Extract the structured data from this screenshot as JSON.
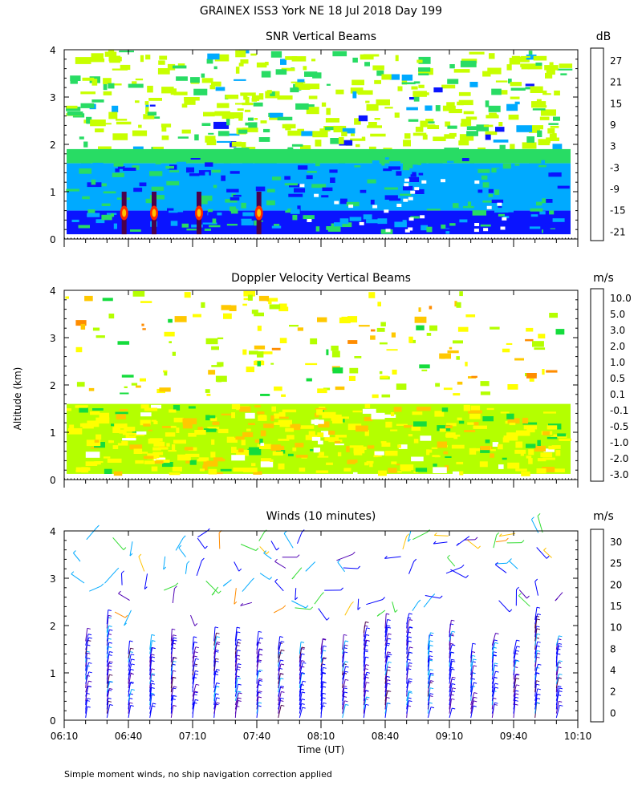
{
  "header": {
    "title": "GRAINEX ISS3 York NE  18 Jul 2018 Day 199"
  },
  "axes": {
    "y_label": "Altitude (km)",
    "x_label": "Time (UT)",
    "y_ticks": [
      "0",
      "1",
      "2",
      "3",
      "4"
    ],
    "x_ticks": [
      "06:10",
      "06:40",
      "07:10",
      "07:40",
      "08:10",
      "08:40",
      "09:10",
      "09:40",
      "10:10"
    ]
  },
  "footnote": "Simple moment winds, no ship navigation correction applied",
  "chart_data": [
    {
      "type": "heatmap",
      "title": "SNR Vertical Beams",
      "units": "dB",
      "xlabel": "",
      "ylabel": "Altitude (km)",
      "xlim": [
        "06:10",
        "10:10"
      ],
      "ylim": [
        0,
        4
      ],
      "colorbar": {
        "labels": [
          "27",
          "21",
          "15",
          "9",
          "3",
          "-3",
          "-9",
          "-15",
          "-21"
        ],
        "colors": [
          "#FFC200",
          "#FF8800",
          "#FF2A00",
          "#4B004B",
          "#6400B4",
          "#0A14FF",
          "#00AAFF",
          "#28DC64",
          "#C8FF00"
        ]
      },
      "layers": [
        {
          "altitude_km": [
            0.1,
            0.6
          ],
          "level": "-3",
          "description": "strong near-surface echo"
        },
        {
          "altitude_km": [
            0.6,
            1.6
          ],
          "level": "-9"
        },
        {
          "altitude_km": [
            1.6,
            1.9
          ],
          "level": "-15"
        },
        {
          "altitude_km": [
            1.9,
            4.0
          ],
          "level": "-21",
          "description": "patchy clear-air returns"
        }
      ]
    },
    {
      "type": "heatmap",
      "title": "Doppler Velocity Vertical Beams",
      "units": "m/s",
      "xlabel": "",
      "ylabel": "Altitude (km)",
      "xlim": [
        "06:10",
        "10:10"
      ],
      "ylim": [
        0,
        4
      ],
      "colorbar": {
        "labels": [
          "10.0",
          "5.0",
          "3.0",
          "2.0",
          "1.0",
          "0.5",
          "0.1",
          "-0.1",
          "-0.5",
          "-1.0",
          "-2.0",
          "-3.0"
        ],
        "colors": [
          "#2A0028",
          "#50006E",
          "#3C00C8",
          "#0A32FF",
          "#0096FF",
          "#00C8FF",
          "#14DC3C",
          "#B4FF00",
          "#FFFF00",
          "#FFC800",
          "#FF8C00",
          "#FF3200"
        ]
      },
      "layers": [
        {
          "altitude_km": [
            0.1,
            1.6
          ],
          "level": "-0.5",
          "description": "weak downward motion in boundary layer"
        },
        {
          "altitude_km": [
            1.6,
            4.0
          ],
          "level": "-0.1",
          "description": "sparse returns aloft"
        }
      ]
    },
    {
      "type": "scatter",
      "title": "Winds (10 minutes)",
      "units": "m/s",
      "xlabel": "Time (UT)",
      "ylabel": "Altitude (km)",
      "xlim": [
        "06:10",
        "10:10"
      ],
      "ylim": [
        0,
        4
      ],
      "profile_interval_min": 10,
      "colorbar": {
        "labels": [
          "30",
          "25",
          "20",
          "15",
          "10",
          "8",
          "4",
          "2",
          "0"
        ],
        "colors": [
          "#FF0000",
          "#FF8C00",
          "#FFC200",
          "#32DC32",
          "#00AAFF",
          "#0000FF",
          "#5000B4",
          "#4B004B",
          "#000000"
        ]
      }
    }
  ]
}
